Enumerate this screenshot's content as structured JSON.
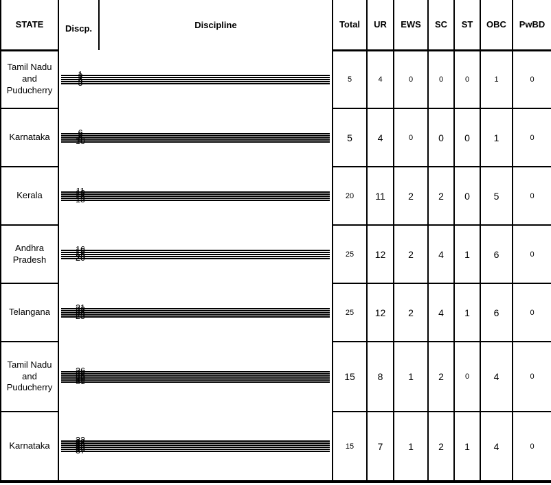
{
  "page": {
    "background": "#ffffff",
    "border_color": "#000000",
    "text_color": "#000000"
  },
  "table": {
    "headers": [
      {
        "key": "state",
        "label": "STATE"
      },
      {
        "key": "discp",
        "label": "Discp."
      },
      {
        "key": "discipline",
        "label": "Discipline"
      },
      {
        "key": "total",
        "label": "Total"
      },
      {
        "key": "ur",
        "label": "UR"
      },
      {
        "key": "ews",
        "label": "EWS"
      },
      {
        "key": "sc",
        "label": "SC"
      },
      {
        "key": "st",
        "label": "ST"
      },
      {
        "key": "obc",
        "label": "OBC"
      },
      {
        "key": "pwbd",
        "label": "PwBD"
      }
    ],
    "groups": [
      {
        "state": "Tamil Nadu and Puducherry",
        "rows": [
          {
            "no": "1",
            "name": "Trade Apprentice Fitter"
          },
          {
            "no": "2",
            "name": "Trade Apprentice Electrician"
          },
          {
            "no": "3",
            "name": "Trade Apprentice Electronic Mechanic"
          },
          {
            "no": "4",
            "name": "Trade Apprentice-Instrument Mechanic"
          },
          {
            "no": "5",
            "name": "Trade Apprentice-Machinist"
          }
        ],
        "values": [
          "5",
          "4",
          "0",
          "0",
          "0",
          "1",
          "0"
        ],
        "value_sizes": [
          "s",
          "s",
          "s",
          "s",
          "s",
          "s",
          "s"
        ]
      },
      {
        "state": "Karnataka",
        "rows": [
          {
            "no": "6",
            "name": "Trade Apprentice Fitter"
          },
          {
            "no": "7",
            "name": "Trade Apprentice Electrician"
          },
          {
            "no": "8",
            "name": "Trade Apprentice Electronic Mechanic"
          },
          {
            "no": "9",
            "name": "Trade Apprentice-Instrument Mechanic"
          },
          {
            "no": "10",
            "name": "Trade Apprentice- Machinist"
          }
        ],
        "values": [
          "5",
          "4",
          "0",
          "0",
          "0",
          "1",
          "0"
        ],
        "value_sizes": [
          "l",
          "l",
          "s",
          "l",
          "l",
          "l",
          "s"
        ]
      },
      {
        "state": "Kerala",
        "rows": [
          {
            "no": "11",
            "name": "Trade Apprentice Fitter"
          },
          {
            "no": "12",
            "name": "Trade Apprentice Electrician"
          },
          {
            "no": "13",
            "name": "Trade Apprentice Electronic Mechanic"
          },
          {
            "no": "14",
            "name": "Trade Apprentice-Instrument Mechanic"
          },
          {
            "no": "15",
            "name": "Trade Apprentice- Machinist"
          }
        ],
        "values": [
          "20",
          "11",
          "2",
          "2",
          "0",
          "5",
          "0"
        ],
        "value_sizes": [
          "s",
          "l",
          "l",
          "l",
          "l",
          "l",
          "s"
        ]
      },
      {
        "state": "Andhra Pradesh",
        "rows": [
          {
            "no": "16",
            "name": "Trade Apprentice Fitter"
          },
          {
            "no": "17",
            "name": "Trade Apprentice Electrician"
          },
          {
            "no": "18",
            "name": "Trade Apprentice Electronic Mechanic"
          },
          {
            "no": "19",
            "name": "Trade Apprentice-Instrument Mechanic"
          },
          {
            "no": "20",
            "name": "Trade Apprentice- Machinist"
          }
        ],
        "values": [
          "25",
          "12",
          "2",
          "4",
          "1",
          "6",
          "0"
        ],
        "value_sizes": [
          "s",
          "l",
          "l",
          "l",
          "l",
          "l",
          "s"
        ]
      },
      {
        "state": "Telangana",
        "rows": [
          {
            "no": "21",
            "name": "Trade Apprentice Fitter"
          },
          {
            "no": "22",
            "name": "Trade Apprentice Electrician"
          },
          {
            "no": "23",
            "name": "Trade Apprentice Electronic Mechanic"
          },
          {
            "no": "24",
            "name": "Trade Apprentice-Instrument Mechanic"
          },
          {
            "no": "25",
            "name": "Trade Apprentice- Machinist"
          }
        ],
        "values": [
          "25",
          "12",
          "2",
          "4",
          "1",
          "6",
          "0"
        ],
        "value_sizes": [
          "s",
          "l",
          "l",
          "l",
          "l",
          "l",
          "s"
        ]
      },
      {
        "state": "Tamil Nadu and Puducherry",
        "rows": [
          {
            "no": "26",
            "name": "Technician Apprentice - Mechanical"
          },
          {
            "no": "27",
            "name": "Technician Apprentice - Electrical"
          },
          {
            "no": "28",
            "name": "Technician Apprentice - Instrumentation"
          },
          {
            "no": "29",
            "name": "Technician Apprentice – Civil"
          },
          {
            "no": "30",
            "name": "Technician Apprentice – Electrical & Electronics"
          },
          {
            "no": "31",
            "name": "Technician Apprentice – Electronics"
          }
        ],
        "values": [
          "15",
          "8",
          "1",
          "2",
          "0",
          "4",
          "0"
        ],
        "value_sizes": [
          "l",
          "l",
          "l",
          "l",
          "s",
          "l",
          "s"
        ]
      },
      {
        "state": "Karnataka",
        "rows": [
          {
            "no": "32",
            "name": "Technician Apprentice - Mechanical"
          },
          {
            "no": "33",
            "name": "Technician Apprentice - Electrical"
          },
          {
            "no": "34",
            "name": "Technician Apprentice - Instrumentation"
          },
          {
            "no": "35",
            "name": "Technician Apprentice – Civil"
          },
          {
            "no": "36",
            "name": "Technician Apprentice – Electrical & Electronics"
          },
          {
            "no": "37",
            "name": "Technician Apprentice – Electronics"
          }
        ],
        "values": [
          "15",
          "7",
          "1",
          "2",
          "1",
          "4",
          "0"
        ],
        "value_sizes": [
          "s",
          "l",
          "l",
          "l",
          "l",
          "l",
          "s"
        ]
      }
    ]
  }
}
